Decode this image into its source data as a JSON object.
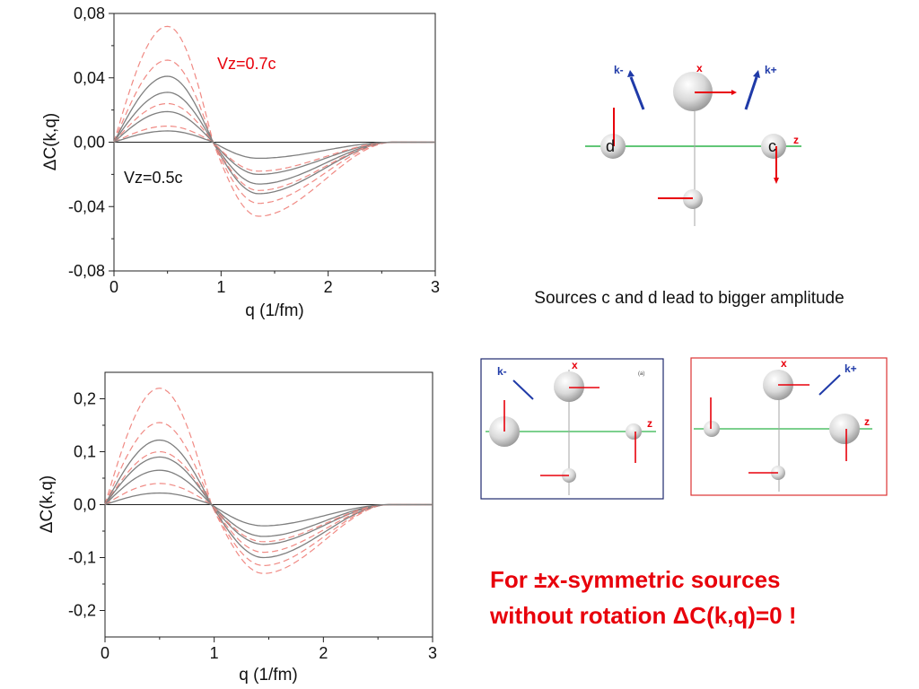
{
  "colors": {
    "gray": "#7f7f7f",
    "red_dash": "#f08a84",
    "red": "#e8000b",
    "blue": "#1f3aa8",
    "green": "#2db34a",
    "axis": "#222222"
  },
  "chart_data": [
    {
      "type": "line",
      "xlabel": "q  (1/fm)",
      "ylabel": "ΔC(k,q)",
      "xlim": [
        0,
        3
      ],
      "ylim": [
        -0.08,
        0.08
      ],
      "xticks": [
        0,
        1,
        2,
        3
      ],
      "xtick_labels": [
        "0",
        "1",
        "2",
        "3"
      ],
      "yticks": [
        -0.08,
        -0.04,
        0,
        0.04,
        0.08
      ],
      "ytick_labels": [
        "-0,08",
        "-0,04",
        "0,00",
        "0,04",
        "0,08"
      ],
      "annotations": [
        {
          "text": "Vz=0.7c",
          "color": "red"
        },
        {
          "text": "Vz=0.5c",
          "color": "black"
        }
      ],
      "series_shape": {
        "peak_q": 0.5,
        "trough_q": 1.35,
        "end_q": 2.6
      },
      "series": [
        {
          "style": "dashed-red",
          "peak": 0.072,
          "trough": -0.046
        },
        {
          "style": "dashed-red",
          "peak": 0.051,
          "trough": -0.038
        },
        {
          "style": "solid-gray",
          "peak": 0.041,
          "trough": -0.032
        },
        {
          "style": "solid-gray",
          "peak": 0.031,
          "trough": -0.026
        },
        {
          "style": "dashed-red",
          "peak": 0.024,
          "trough": -0.03
        },
        {
          "style": "solid-gray",
          "peak": 0.019,
          "trough": -0.02
        },
        {
          "style": "dashed-red",
          "peak": 0.01,
          "trough": -0.018
        },
        {
          "style": "solid-gray",
          "peak": 0.007,
          "trough": -0.01
        }
      ]
    },
    {
      "type": "line",
      "xlabel": "q  (1/fm)",
      "ylabel": "ΔC(k,q)",
      "xlim": [
        0,
        3
      ],
      "ylim": [
        -0.25,
        0.25
      ],
      "xticks": [
        0,
        1,
        2,
        3
      ],
      "xtick_labels": [
        "0",
        "1",
        "2",
        "3"
      ],
      "yticks": [
        -0.2,
        -0.1,
        0,
        0.1,
        0.2
      ],
      "ytick_labels": [
        "-0,2",
        "-0,1",
        "0,0",
        "0,1",
        "0,2"
      ],
      "annotations": [],
      "series_shape": {
        "peak_q": 0.5,
        "trough_q": 1.45,
        "end_q": 2.6
      },
      "series": [
        {
          "style": "dashed-red",
          "peak": 0.22,
          "trough": -0.13
        },
        {
          "style": "dashed-red",
          "peak": 0.155,
          "trough": -0.115
        },
        {
          "style": "solid-gray",
          "peak": 0.122,
          "trough": -0.1
        },
        {
          "style": "dashed-red",
          "peak": 0.1,
          "trough": -0.09
        },
        {
          "style": "solid-gray",
          "peak": 0.09,
          "trough": -0.075
        },
        {
          "style": "solid-gray",
          "peak": 0.065,
          "trough": -0.06
        },
        {
          "style": "dashed-red",
          "peak": 0.04,
          "trough": -0.07
        },
        {
          "style": "solid-gray",
          "peak": 0.022,
          "trough": -0.04
        }
      ]
    }
  ],
  "diagram_top": {
    "labels": {
      "k_minus": "k-",
      "k_plus": "k+",
      "x": "x",
      "z": "z",
      "d": "d",
      "c": "c"
    }
  },
  "diagram_left": {
    "labels": {
      "k_minus": "k-",
      "x": "x",
      "z": "z",
      "tag": "(a)"
    }
  },
  "diagram_right": {
    "labels": {
      "k_plus": "k+",
      "x": "x",
      "z": "z"
    }
  },
  "caption": "Sources c and d lead to bigger amplitude",
  "statement": {
    "line1": "For ±x-symmetric sources",
    "line2": "without  rotation  ΔC(k,q)=0 !"
  }
}
